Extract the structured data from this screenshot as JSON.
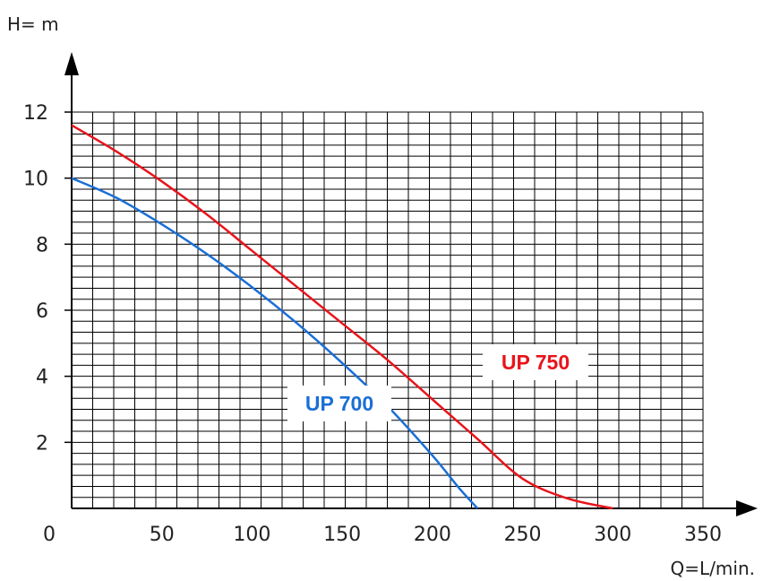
{
  "chart_data": {
    "type": "line",
    "xlabel": "Q=L/min.",
    "ylabel": "H= m",
    "xlim": [
      0,
      350
    ],
    "ylim": [
      0,
      12
    ],
    "x_ticks": [
      "0",
      "50",
      "100",
      "150",
      "200",
      "250",
      "300",
      "350"
    ],
    "y_ticks": [
      "2",
      "4",
      "6",
      "8",
      "10",
      "12"
    ],
    "grid": true,
    "series": [
      {
        "name": "UP 750",
        "color": "#e8141b",
        "x": [
          0,
          25,
          50,
          75,
          100,
          125,
          150,
          175,
          200,
          225,
          250,
          275,
          300
        ],
        "y": [
          11.6,
          10.8,
          9.9,
          8.9,
          7.8,
          6.7,
          5.6,
          4.5,
          3.3,
          2.1,
          0.9,
          0.3,
          0.0
        ]
      },
      {
        "name": "UP 700",
        "color": "#1a6fd6",
        "x": [
          0,
          25,
          50,
          75,
          100,
          125,
          150,
          175,
          200,
          215,
          225
        ],
        "y": [
          10.0,
          9.4,
          8.6,
          7.7,
          6.7,
          5.6,
          4.4,
          3.1,
          1.6,
          0.6,
          0.0
        ]
      }
    ]
  }
}
